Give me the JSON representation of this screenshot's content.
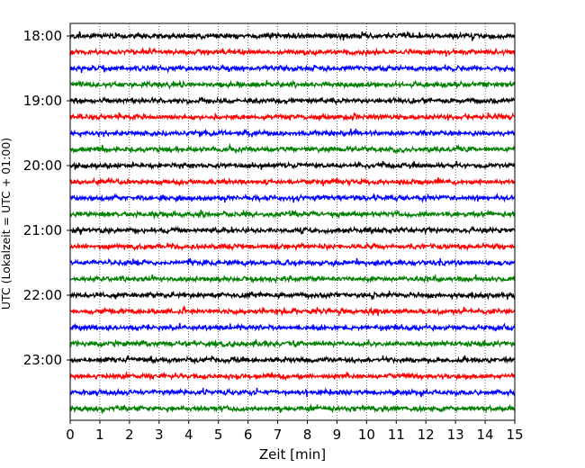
{
  "chart_data": {
    "type": "line",
    "description_kind": "seismogram helicorder",
    "xlabel": "Zeit  [min]",
    "ylabel": "UTC (Lokalzeit = UTC + 01:00)",
    "xlim": [
      0,
      15
    ],
    "x_ticks": [
      0,
      1,
      2,
      3,
      4,
      5,
      6,
      7,
      8,
      9,
      10,
      11,
      12,
      13,
      14,
      15
    ],
    "x_tick_labels": [
      "0",
      "1",
      "2",
      "3",
      "4",
      "5",
      "6",
      "7",
      "8",
      "9",
      "10",
      "11",
      "12",
      "13",
      "14",
      "15"
    ],
    "y_ticks": [
      "18:00",
      "19:00",
      "20:00",
      "21:00",
      "22:00",
      "23:00"
    ],
    "vertical_grid": true,
    "trace_interval_minutes": 15,
    "trace_colors": [
      "#000000",
      "#ff0000",
      "#0000ff",
      "#008000"
    ],
    "traces": [
      {
        "start": "18:00"
      },
      {
        "start": "18:15"
      },
      {
        "start": "18:30"
      },
      {
        "start": "18:45"
      },
      {
        "start": "19:00"
      },
      {
        "start": "19:15"
      },
      {
        "start": "19:30"
      },
      {
        "start": "19:45"
      },
      {
        "start": "20:00"
      },
      {
        "start": "20:15"
      },
      {
        "start": "20:30"
      },
      {
        "start": "20:45"
      },
      {
        "start": "21:00"
      },
      {
        "start": "21:15"
      },
      {
        "start": "21:30"
      },
      {
        "start": "21:45"
      },
      {
        "start": "22:00"
      },
      {
        "start": "22:15"
      },
      {
        "start": "22:30"
      },
      {
        "start": "22:45"
      },
      {
        "start": "23:00"
      },
      {
        "start": "23:15"
      },
      {
        "start": "23:30"
      },
      {
        "start": "23:45"
      }
    ]
  }
}
